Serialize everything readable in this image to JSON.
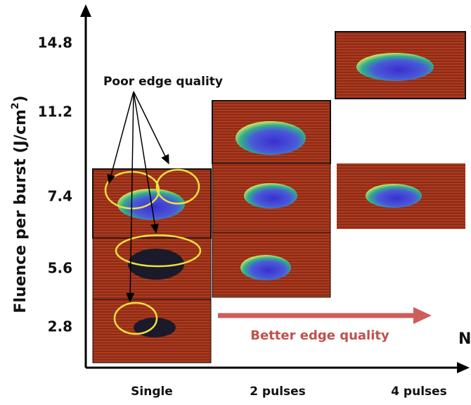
{
  "y_axis": {
    "title_parts": [
      "Fluence per burst (J/cm",
      "2",
      ")"
    ],
    "ticks": [
      "14.8",
      "11.2",
      "7.4",
      "5.6",
      "2.8"
    ]
  },
  "x_axis": {
    "label": "N",
    "categories": [
      "Single",
      "2 pulses",
      "4 pulses"
    ]
  },
  "annotations": {
    "poor": "Poor edge quality",
    "better": "Better edge quality"
  }
}
